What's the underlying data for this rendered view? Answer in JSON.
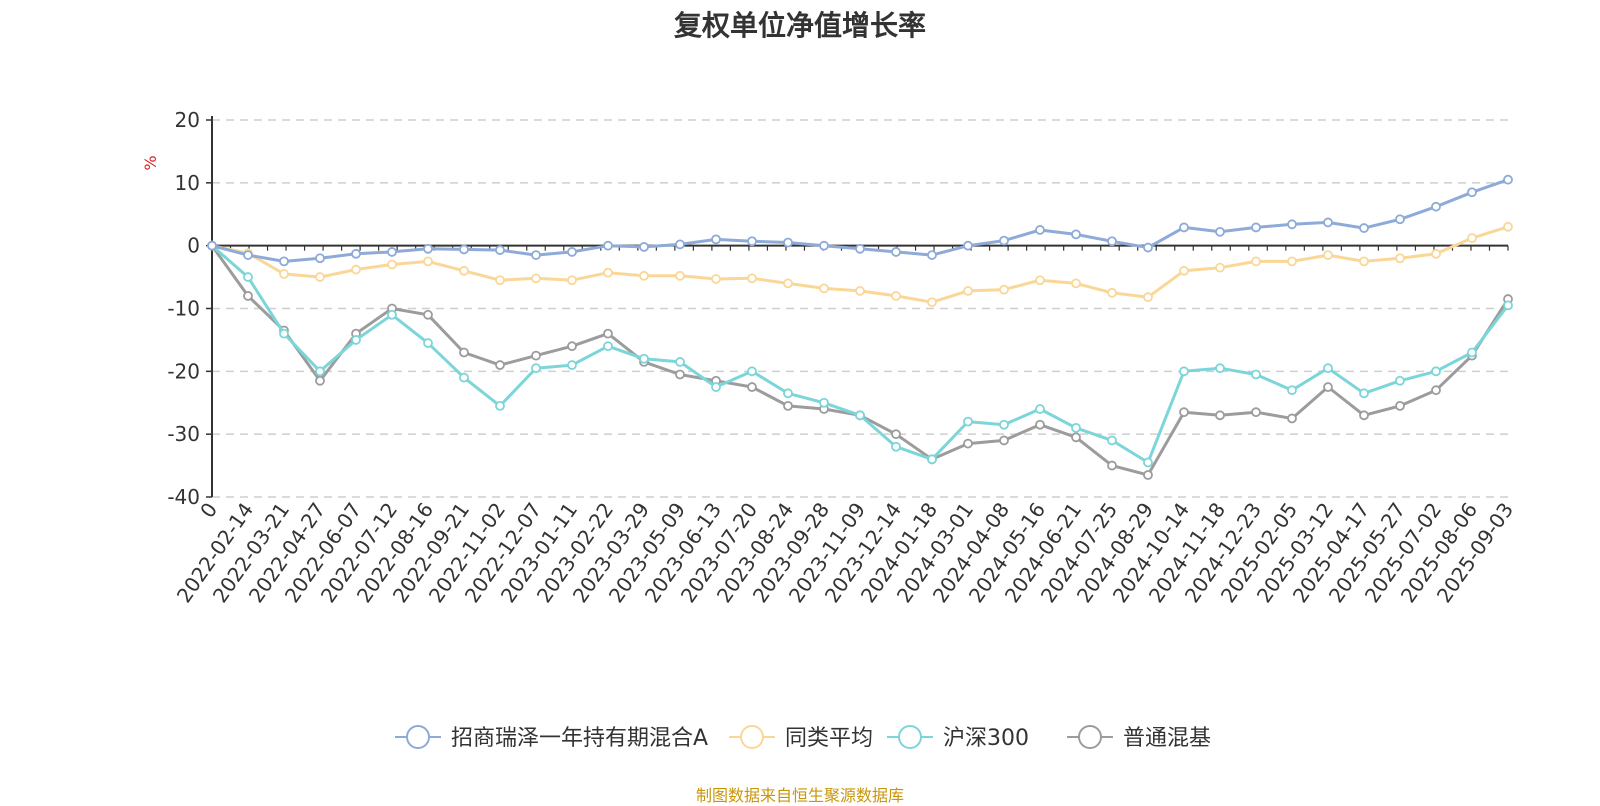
{
  "chart_data": {
    "type": "line",
    "title": "复权单位净值增长率",
    "ylabel": "%",
    "ylim": [
      -40,
      20
    ],
    "yticks": [
      20,
      10,
      0,
      -10,
      -20,
      -30,
      -40
    ],
    "grid": true,
    "legend_position": "bottom-center",
    "x": [
      "0",
      "2022-02-14",
      "2022-03-21",
      "2022-04-27",
      "2022-06-07",
      "2022-07-12",
      "2022-08-16",
      "2022-09-21",
      "2022-11-02",
      "2022-12-07",
      "2023-01-11",
      "2023-02-22",
      "2023-03-29",
      "2023-05-09",
      "2023-06-13",
      "2023-07-20",
      "2023-08-24",
      "2023-09-28",
      "2023-11-09",
      "2023-12-14",
      "2024-01-18",
      "2024-03-01",
      "2024-04-08",
      "2024-05-16",
      "2024-06-21",
      "2024-07-25",
      "2024-08-29",
      "2024-10-14",
      "2024-11-18",
      "2024-12-23",
      "2025-02-05",
      "2025-03-12",
      "2025-04-17",
      "2025-05-27",
      "2025-07-02",
      "2025-08-06",
      "2025-09-03"
    ],
    "series": [
      {
        "name": "招商瑞泽一年持有期混合A",
        "color": "#8eaad8",
        "values": [
          0,
          -1.5,
          -2.5,
          -2,
          -1.3,
          -1,
          -0.5,
          -0.6,
          -0.7,
          -1.5,
          -1,
          0,
          -0.2,
          0.2,
          1,
          0.7,
          0.5,
          0,
          -0.5,
          -1,
          -1.5,
          0,
          0.8,
          2.5,
          1.8,
          0.7,
          -0.3,
          2.9,
          2.2,
          2.9,
          3.4,
          3.7,
          2.8,
          4.2,
          6.2,
          8.5,
          10.5
        ]
      },
      {
        "name": "同类平均",
        "color": "#fad797",
        "values": [
          0,
          -1.2,
          -4.5,
          -5,
          -3.8,
          -3,
          -2.5,
          -4,
          -5.5,
          -5.2,
          -5.5,
          -4.3,
          -4.8,
          -4.8,
          -5.3,
          -5.2,
          -6,
          -6.8,
          -7.2,
          -8,
          -9,
          -7.2,
          -7,
          -5.5,
          -6,
          -7.5,
          -8.2,
          -4,
          -3.5,
          -2.5,
          -2.5,
          -1.5,
          -2.5,
          -2,
          -1.3,
          1.2,
          3
        ]
      },
      {
        "name": "沪深300",
        "color": "#7cd5d9",
        "values": [
          0,
          -5,
          -14,
          -20,
          -15,
          -11,
          -15.5,
          -21,
          -25.5,
          -19.5,
          -19,
          -16,
          -18,
          -18.5,
          -22.5,
          -20,
          -23.5,
          -25,
          -27,
          -32,
          -34,
          -28,
          -28.5,
          -26,
          -29,
          -31,
          -34.5,
          -20,
          -19.5,
          -20.5,
          -23,
          -19.5,
          -23.5,
          -21.5,
          -20,
          -17,
          -9.5
        ]
      },
      {
        "name": "普通混基",
        "color": "#9c9c9c",
        "values": [
          0,
          -8,
          -13.5,
          -21.5,
          -14,
          -10,
          -11,
          -17,
          -19,
          -17.5,
          -16,
          -14,
          -18.5,
          -20.5,
          -21.5,
          -22.5,
          -25.5,
          -26,
          -27,
          -30,
          -34,
          -31.5,
          -31,
          -28.5,
          -30.5,
          -35,
          -36.5,
          -26.5,
          -27,
          -26.5,
          -27.5,
          -22.5,
          -27,
          -25.5,
          -23,
          -17.5,
          -8.5
        ]
      }
    ]
  },
  "footer": {
    "source": "制图数据来自恒生聚源数据库"
  }
}
